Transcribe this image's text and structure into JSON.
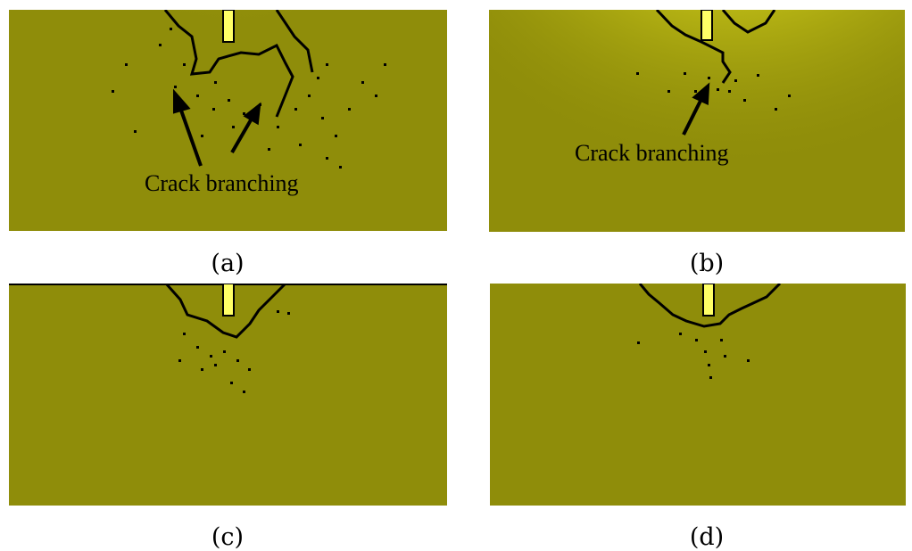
{
  "figure": {
    "panels": [
      {
        "id": "a",
        "caption": "(a)",
        "annotation": "Crack branching"
      },
      {
        "id": "b",
        "caption": "(b)",
        "annotation": "Crack branching"
      },
      {
        "id": "c",
        "caption": "(c)",
        "annotation": ""
      },
      {
        "id": "d",
        "caption": "(d)",
        "annotation": ""
      }
    ],
    "colors": {
      "background": "#8f8d0a",
      "highlight": "#ffff33",
      "crack": "#000000"
    }
  }
}
